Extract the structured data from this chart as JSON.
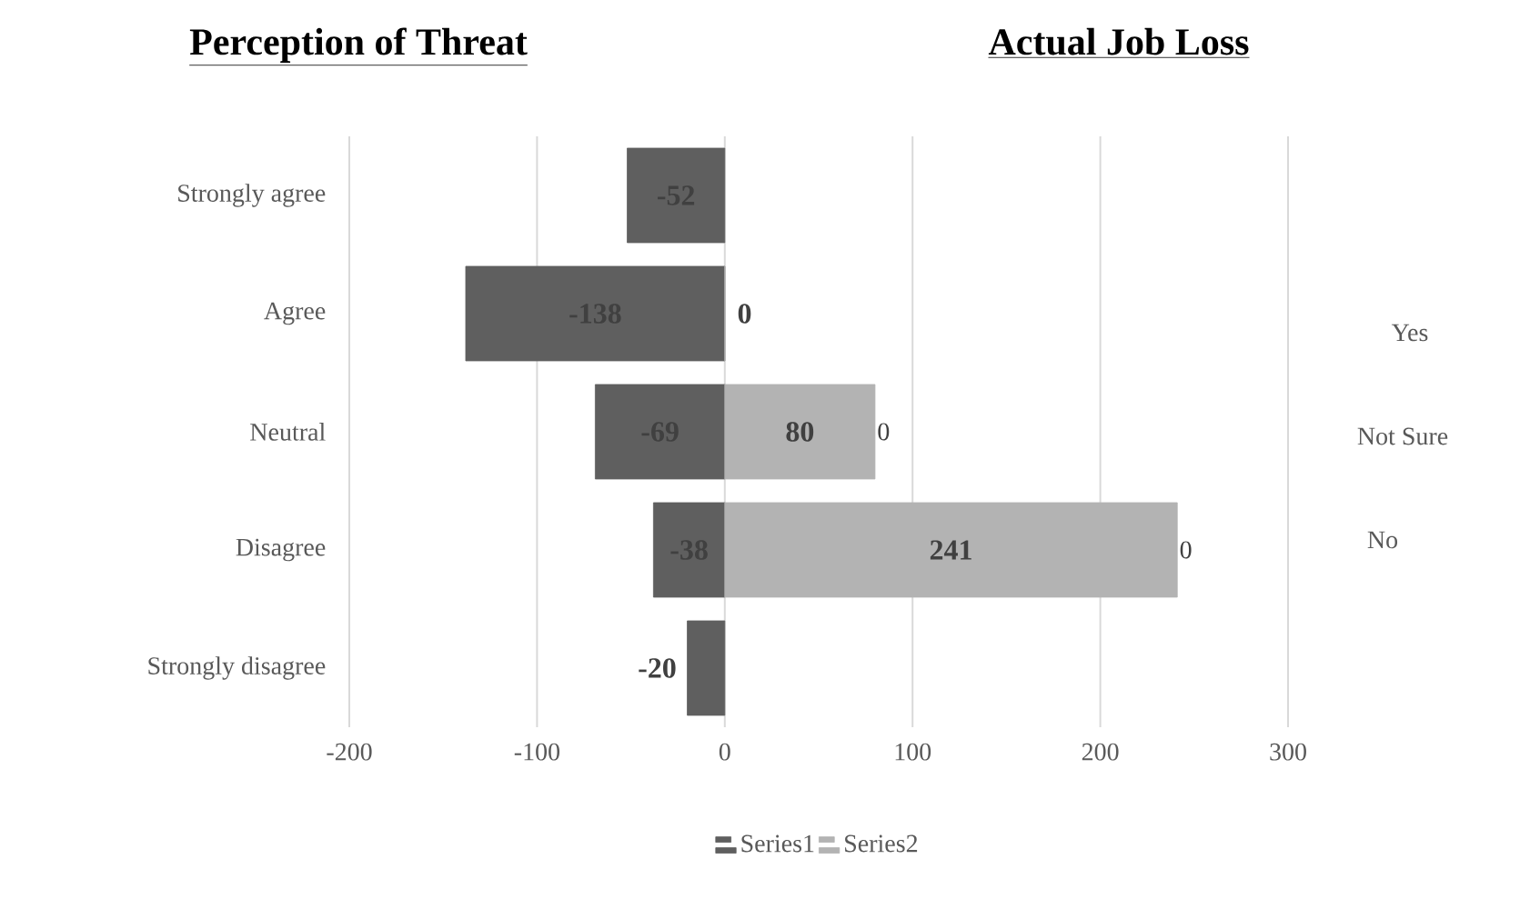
{
  "chart_data": {
    "type": "bar",
    "orientation": "horizontal",
    "categories": [
      "Strongly agree",
      "Agree",
      "Neutral",
      "Disagree",
      "Strongly disagree"
    ],
    "series": [
      {
        "name": "Series1",
        "color": "#5f5f5f",
        "values": [
          -52,
          -138,
          -69,
          -38,
          -20
        ],
        "value_labels": [
          "-52",
          "-138",
          "-69",
          "-38",
          "-20"
        ]
      },
      {
        "name": "Series2",
        "color": "#b3b3b3",
        "values": [
          null,
          0,
          80,
          241,
          null
        ],
        "value_labels": [
          null,
          "0",
          "80",
          "241",
          null
        ]
      }
    ],
    "xlim": [
      -200,
      300
    ],
    "xticks": [
      -200,
      -100,
      0,
      100,
      200,
      300
    ],
    "grid": "x",
    "legend": "bottom",
    "annotations": [
      "Perception of Threat",
      "Actual Job Loss",
      "Yes",
      "Not Sure",
      "No",
      {
        "text": "0",
        "x": 80,
        "y": "Neutral"
      },
      {
        "text": "0",
        "x": 241,
        "y": "Disagree"
      }
    ]
  }
}
